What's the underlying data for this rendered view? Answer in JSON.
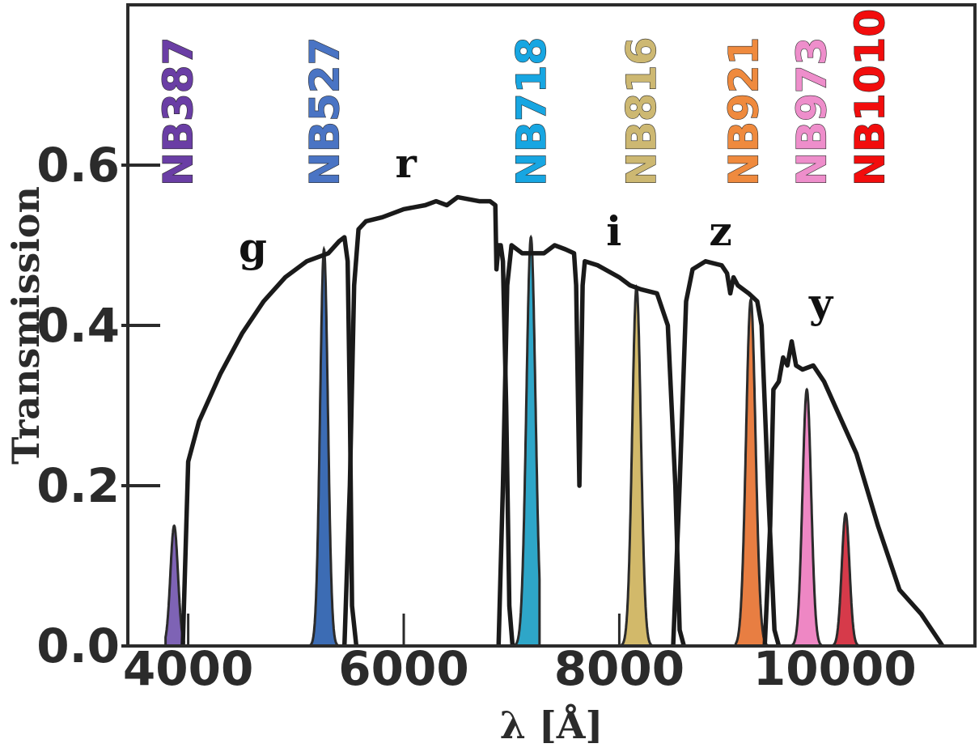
{
  "chart_data": {
    "type": "line",
    "title": "",
    "xlabel": "λ [Å]",
    "ylabel": "Transmission",
    "xlim": [
      3440,
      11300
    ],
    "ylim": [
      0,
      0.8
    ],
    "grid": false,
    "x_ticks": [
      4000,
      6000,
      8000,
      10000
    ],
    "x_tick_labels": [
      "4000",
      "6000",
      "8000",
      "10000"
    ],
    "y_ticks": [
      0.0,
      0.2,
      0.4,
      0.6
    ],
    "y_tick_labels": [
      "0.0",
      "0.2",
      "0.4",
      "0.6"
    ],
    "broadband_series": [
      {
        "name": "g",
        "color": "#1a1a1a",
        "points": [
          [
            3950,
            0
          ],
          [
            4000,
            0.23
          ],
          [
            4100,
            0.28
          ],
          [
            4300,
            0.34
          ],
          [
            4500,
            0.39
          ],
          [
            4700,
            0.43
          ],
          [
            4900,
            0.46
          ],
          [
            5100,
            0.48
          ],
          [
            5300,
            0.49
          ],
          [
            5400,
            0.505
          ],
          [
            5450,
            0.51
          ],
          [
            5480,
            0.48
          ],
          [
            5500,
            0.3
          ],
          [
            5520,
            0.05
          ],
          [
            5560,
            0
          ]
        ]
      },
      {
        "name": "r",
        "color": "#1a1a1a",
        "points": [
          [
            5450,
            0
          ],
          [
            5500,
            0.2
          ],
          [
            5540,
            0.45
          ],
          [
            5580,
            0.52
          ],
          [
            5650,
            0.53
          ],
          [
            5800,
            0.535
          ],
          [
            6000,
            0.545
          ],
          [
            6200,
            0.55
          ],
          [
            6300,
            0.555
          ],
          [
            6400,
            0.55
          ],
          [
            6500,
            0.56
          ],
          [
            6700,
            0.555
          ],
          [
            6800,
            0.555
          ],
          [
            6850,
            0.55
          ],
          [
            6860,
            0.47
          ],
          [
            6880,
            0.5
          ],
          [
            6900,
            0.5
          ],
          [
            6920,
            0.48
          ],
          [
            6950,
            0.3
          ],
          [
            6980,
            0.05
          ],
          [
            7010,
            0
          ]
        ]
      },
      {
        "name": "i",
        "color": "#1a1a1a",
        "points": [
          [
            6880,
            0
          ],
          [
            6920,
            0.2
          ],
          [
            6960,
            0.45
          ],
          [
            7000,
            0.5
          ],
          [
            7100,
            0.49
          ],
          [
            7300,
            0.49
          ],
          [
            7400,
            0.5
          ],
          [
            7500,
            0.495
          ],
          [
            7580,
            0.49
          ],
          [
            7600,
            0.45
          ],
          [
            7630,
            0.2
          ],
          [
            7660,
            0.45
          ],
          [
            7680,
            0.48
          ],
          [
            7800,
            0.475
          ],
          [
            8000,
            0.46
          ],
          [
            8100,
            0.45
          ],
          [
            8200,
            0.445
          ],
          [
            8350,
            0.44
          ],
          [
            8450,
            0.4
          ],
          [
            8520,
            0.2
          ],
          [
            8560,
            0.02
          ],
          [
            8600,
            0
          ]
        ]
      },
      {
        "name": "z",
        "color": "#1a1a1a",
        "points": [
          [
            8500,
            0
          ],
          [
            8560,
            0.2
          ],
          [
            8620,
            0.43
          ],
          [
            8680,
            0.47
          ],
          [
            8800,
            0.48
          ],
          [
            8950,
            0.475
          ],
          [
            9000,
            0.465
          ],
          [
            9030,
            0.44
          ],
          [
            9060,
            0.46
          ],
          [
            9100,
            0.45
          ],
          [
            9200,
            0.44
          ],
          [
            9280,
            0.43
          ],
          [
            9320,
            0.4
          ],
          [
            9380,
            0.2
          ],
          [
            9440,
            0.02
          ],
          [
            9480,
            0
          ]
        ]
      },
      {
        "name": "y",
        "color": "#1a1a1a",
        "points": [
          [
            9350,
            0
          ],
          [
            9400,
            0.15
          ],
          [
            9430,
            0.32
          ],
          [
            9480,
            0.33
          ],
          [
            9520,
            0.36
          ],
          [
            9560,
            0.35
          ],
          [
            9600,
            0.38
          ],
          [
            9640,
            0.35
          ],
          [
            9700,
            0.345
          ],
          [
            9800,
            0.35
          ],
          [
            9900,
            0.33
          ],
          [
            10000,
            0.3
          ],
          [
            10200,
            0.24
          ],
          [
            10400,
            0.15
          ],
          [
            10600,
            0.07
          ],
          [
            10800,
            0.04
          ],
          [
            10950,
            0.01
          ],
          [
            11000,
            0
          ]
        ]
      }
    ],
    "narrowband_series": [
      {
        "name": "NB387",
        "color": "#7e63b5",
        "center": 3870,
        "peak": 0.15,
        "width": 35,
        "range": [
          3790,
          3960
        ]
      },
      {
        "name": "NB527",
        "color": "#3c6cb4",
        "center": 5260,
        "peak": 0.495,
        "width": 36,
        "range": [
          4540,
          5550
        ]
      },
      {
        "name": "NB718",
        "color": "#2ea6c8",
        "center": 7180,
        "peak": 0.51,
        "width": 42,
        "range": [
          6970,
          7260
        ]
      },
      {
        "name": "NB816",
        "color": "#d2b96a",
        "center": 8160,
        "peak": 0.448,
        "width": 40,
        "range": [
          7300,
          8300
        ]
      },
      {
        "name": "NB921",
        "color": "#e87e42",
        "center": 9220,
        "peak": 0.432,
        "width": 44,
        "range": [
          9080,
          9420
        ]
      },
      {
        "name": "NB973",
        "color": "#ee87c4",
        "center": 9740,
        "peak": 0.32,
        "width": 40,
        "range": [
          9540,
          9880
        ]
      },
      {
        "name": "NB1010",
        "color": "#d63a4a",
        "center": 10100,
        "peak": 0.165,
        "width": 36,
        "range": [
          9960,
          10250
        ]
      }
    ],
    "broadband_labels": [
      {
        "text": "g",
        "x": 4600,
        "y": 0.48
      },
      {
        "text": "r",
        "x": 6020,
        "y": 0.585
      },
      {
        "text": "i",
        "x": 7950,
        "y": 0.5
      },
      {
        "text": "z",
        "x": 8940,
        "y": 0.5
      },
      {
        "text": "y",
        "x": 9870,
        "y": 0.41
      }
    ],
    "narrowband_labels": [
      {
        "text": "NB387",
        "color": "#6a3ea5",
        "x": 3900
      },
      {
        "text": "NB527",
        "color": "#4a74c4",
        "x": 5260
      },
      {
        "text": "NB718",
        "color": "#17a6e2",
        "x": 7180
      },
      {
        "text": "NB816",
        "color": "#cdb872",
        "x": 8200
      },
      {
        "text": "NB921",
        "color": "#ef8a3e",
        "x": 9150
      },
      {
        "text": "NB973",
        "color": "#ee8ecb",
        "x": 9780
      },
      {
        "text": "NB1010",
        "color": "#f20d0d",
        "x": 10320
      }
    ],
    "minor_ticks_x": [
      4000,
      6000,
      8000
    ]
  }
}
